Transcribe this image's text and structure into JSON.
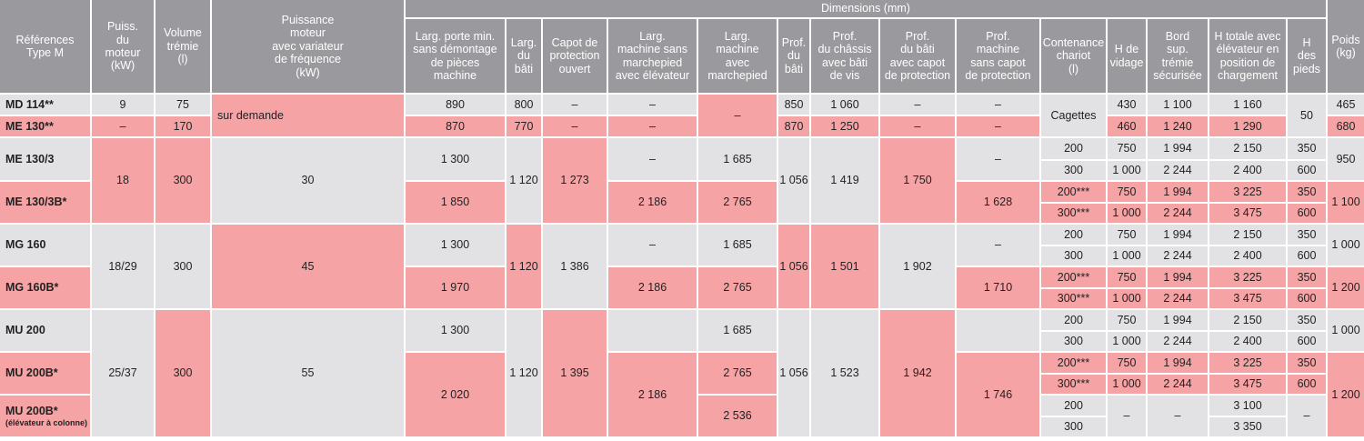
{
  "header": {
    "references": "Références\nType M",
    "puiss": "Puiss.\ndu\nmoteur\n(kW)",
    "volume": "Volume\ntrémie\n(l)",
    "puissance_var": "Puissance\nmoteur\navec variateur\nde fréquence\n(kW)",
    "dimensions": "Dimensions (mm)",
    "larg_porte": "Larg. porte min.\nsans démontage\nde pièces\nmachine",
    "larg_bati": "Larg.\ndu\nbâti",
    "capot": "Capot de\nprotection\nouvert",
    "larg_sans_marchepied": "Larg.\nmachine sans\nmarchepied\navec élévateur",
    "larg_avec_marchepied": "Larg.\nmachine\navec\nmarchepied",
    "prof_bati": "Prof.\ndu\nbâti",
    "prof_chassis": "Prof.\ndu châssis\navec bâti\nde vis",
    "prof_bati_capot": "Prof.\ndu bâti\navec capot\nde protection",
    "prof_machine_sans_capot": "Prof.\nmachine\nsans capot\nde protection",
    "contenance": "Contenance\nchariot\n(l)",
    "h_vidage": "H de\nvidage",
    "bord_sup": "Bord\nsup.\ntrémie\nsécurisée",
    "h_totale": "H totale avec\nélévateur en\nposition de\nchargement",
    "h_pieds": "H\ndes\npieds",
    "poids": "Poids\n(kg)"
  },
  "refs": {
    "md114": "MD 114**",
    "me130": "ME 130**",
    "me130_3": "ME 130/3",
    "me130_3b": "ME 130/3B*",
    "mg160": "MG 160",
    "mg160b": "MG 160B*",
    "mu200": "MU 200",
    "mu200b": "MU 200B*",
    "mu200b_col": "MU 200B*",
    "mu200b_col_note": "(élévateur à colonne)"
  },
  "values": {
    "dash": "–",
    "md_puiss": "9",
    "md_vol": "75",
    "sur_demande": "sur demande",
    "md_porte": "890",
    "md_bati": "800",
    "md_prof": "850",
    "md_chassis": "1 060",
    "me_vol": "170",
    "me_porte": "870",
    "me_bati": "770",
    "me_prof": "870",
    "me_chassis": "1 250",
    "cagettes": "Cagettes",
    "md_vid": "430",
    "md_bord": "1 100",
    "md_htot": "1 160",
    "me_vid": "460",
    "me_bord": "1 240",
    "me_htot": "1 290",
    "pieds_50": "50",
    "md_poids": "465",
    "me_poids": "680",
    "me3_puiss": "18",
    "me3_vol": "300",
    "me3_var": "30",
    "me3_porte": "1 300",
    "me3b_porte": "1 850",
    "me3_bati": "1 120",
    "me3_capot": "1 273",
    "me3b_sans": "2 186",
    "me3_avec": "1 685",
    "me3b_avec": "2 765",
    "me3_prof": "1 056",
    "me3_chassis": "1 419",
    "me3_prof_capot": "1 750",
    "me3b_sans_capot": "1 628",
    "mg_puiss": "18/29",
    "mg_vol": "300",
    "mg_var": "45",
    "mg_porte": "1 300",
    "mgb_porte": "1 970",
    "mg_bati": "1 120",
    "mg_capot": "1 386",
    "mgb_sans": "2 186",
    "mg_avec": "1 685",
    "mgb_avec": "2 765",
    "mg_prof": "1 056",
    "mg_chassis": "1 501",
    "mg_prof_capot": "1 902",
    "mgb_sans_capot": "1 710",
    "mu_puiss": "25/37",
    "mu_vol": "300",
    "mu_var": "55",
    "mu_porte": "1 300",
    "mub_porte": "2 020",
    "mu_bati": "1 120",
    "mu_capot": "1 395",
    "mub_sans": "2 186",
    "mu_avec": "1 685",
    "mub_avec": "2 765",
    "mubc_avec": "2 536",
    "mu_prof": "1 056",
    "mu_chassis": "1 523",
    "mu_prof_capot": "1 942",
    "mub_sans_capot": "1 746",
    "c200": "200",
    "c300": "300",
    "c200s": "200***",
    "c300s": "300***",
    "v750": "750",
    "v1000": "1 000",
    "b1994": "1 994",
    "b2244": "2 244",
    "h2150": "2 150",
    "h2400": "2 400",
    "h3225": "3 225",
    "h3475": "3 475",
    "h3100": "3 100",
    "h3350": "3 350",
    "p350": "350",
    "p600": "600",
    "w950": "950",
    "w1100": "1 100",
    "w1000": "1 000",
    "w1200": "1 200"
  },
  "colors": {
    "gray": "#e2e2e4",
    "pink": "#f6a3a6",
    "header": "#9a9a9e"
  }
}
